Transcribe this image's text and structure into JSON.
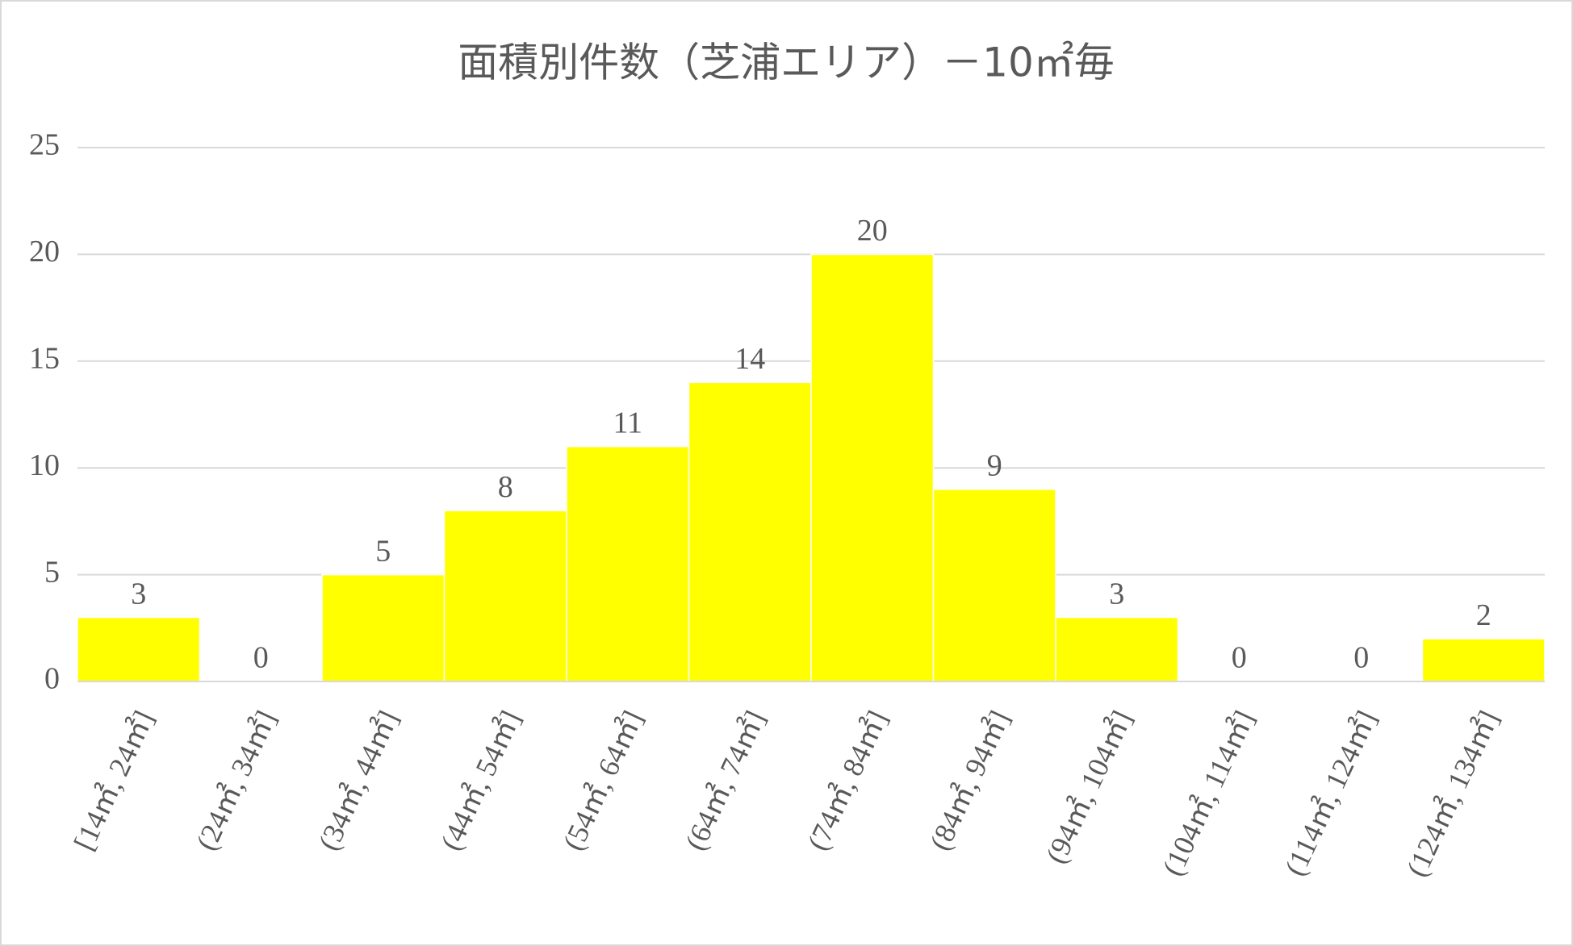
{
  "chart_data": {
    "type": "bar",
    "title": "面積別件数（芝浦エリア）－10㎡毎",
    "categories": [
      "[14㎡, 24㎡]",
      "(24㎡, 34㎡]",
      "(34㎡, 44㎡]",
      "(44㎡, 54㎡]",
      "(54㎡, 64㎡]",
      "(64㎡, 74㎡]",
      "(74㎡, 84㎡]",
      "(84㎡, 94㎡]",
      "(94㎡, 104㎡]",
      "(104㎡, 114㎡]",
      "(114㎡, 124㎡]",
      "(124㎡, 134㎡]"
    ],
    "values": [
      3,
      0,
      5,
      8,
      11,
      14,
      20,
      9,
      3,
      0,
      0,
      2
    ],
    "color": "#ffff00",
    "ylim": [
      0,
      25
    ],
    "yticks": [
      0,
      5,
      10,
      15,
      20,
      25
    ],
    "grid": true
  }
}
